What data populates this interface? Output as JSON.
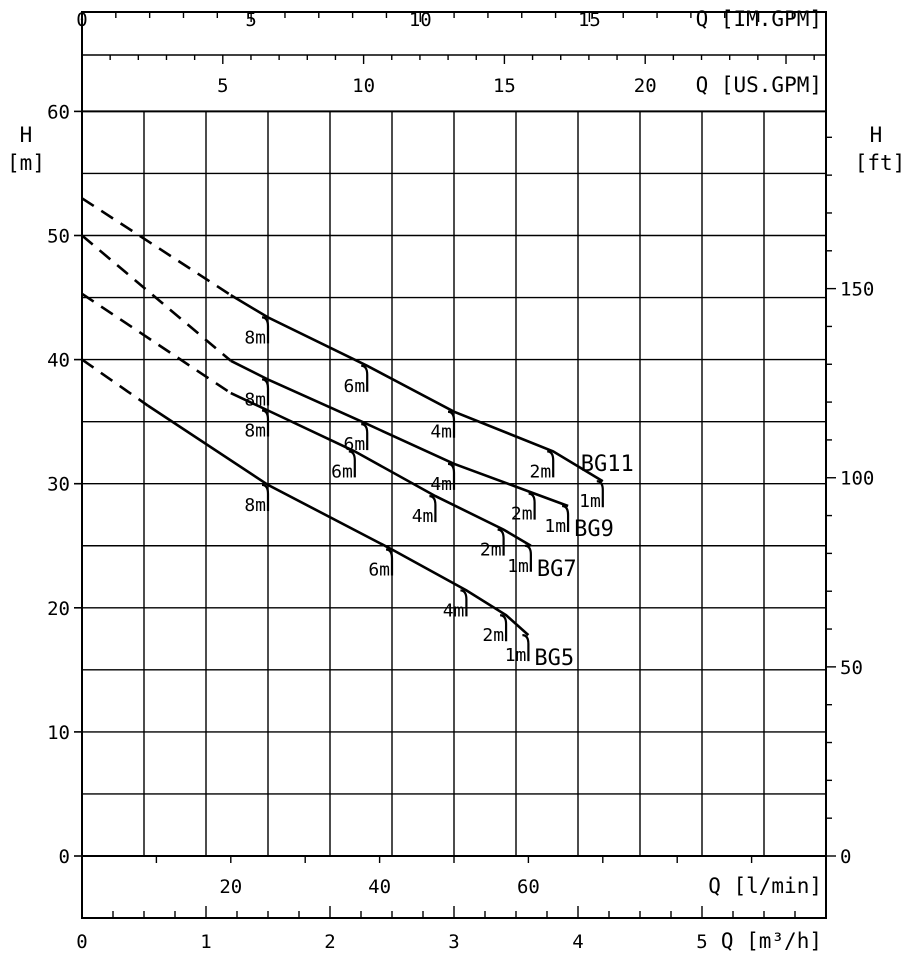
{
  "chart_data": {
    "type": "line",
    "title": "",
    "x_units": "m³/h",
    "y_units": "m",
    "xlim": [
      0,
      6
    ],
    "ylim": [
      -5,
      60
    ],
    "grid": true,
    "axes": {
      "bottom": {
        "title": "Q [m³/h]",
        "ticks": [
          "0",
          "1",
          "2",
          "3",
          "4",
          "5"
        ]
      },
      "bottom_inner": {
        "title": "Q [l/min]",
        "ticks": [
          "20",
          "40",
          "60"
        ]
      },
      "top": {
        "title": "Q [IM.GPM]",
        "ticks": [
          "0",
          "5",
          "10",
          "15"
        ]
      },
      "top_inner": {
        "title": "Q [US.GPM]",
        "ticks": [
          "5",
          "10",
          "15",
          "20"
        ]
      },
      "left": {
        "title_line1": "H",
        "title_line2": "[m]",
        "ticks": [
          "0",
          "10",
          "20",
          "30",
          "40",
          "50",
          "60"
        ]
      },
      "right": {
        "title_line1": "H",
        "title_line2": "[ft]",
        "ticks": [
          "0",
          "50",
          "100",
          "150"
        ]
      }
    },
    "series": [
      {
        "name": "BG11",
        "dashed": [
          [
            0,
            53
          ],
          [
            1.2,
            45.2
          ]
        ],
        "solid": [
          [
            1.2,
            45.2
          ],
          [
            1.5,
            43.4
          ],
          [
            2.3,
            39.5
          ],
          [
            3.0,
            35.8
          ],
          [
            3.8,
            32.6
          ],
          [
            4.2,
            30.2
          ]
        ],
        "markers": [
          {
            "label": "8m",
            "x": 1.5,
            "y": 43.4
          },
          {
            "label": "6m",
            "x": 2.3,
            "y": 39.5
          },
          {
            "label": "4m",
            "x": 3.0,
            "y": 35.8
          },
          {
            "label": "2m",
            "x": 3.8,
            "y": 32.6
          },
          {
            "label": "1m",
            "x": 4.2,
            "y": 30.2
          }
        ]
      },
      {
        "name": "BG9",
        "dashed": [
          [
            0,
            50
          ],
          [
            1.2,
            39.9
          ]
        ],
        "solid": [
          [
            1.2,
            39.9
          ],
          [
            1.5,
            38.4
          ],
          [
            2.3,
            34.8
          ],
          [
            3.0,
            31.6
          ],
          [
            3.65,
            29.2
          ],
          [
            3.92,
            28.2
          ]
        ],
        "markers": [
          {
            "label": "8m",
            "x": 1.5,
            "y": 38.4
          },
          {
            "label": "6m",
            "x": 2.3,
            "y": 34.8
          },
          {
            "label": "4m",
            "x": 3.0,
            "y": 31.6
          },
          {
            "label": "2m",
            "x": 3.65,
            "y": 29.2
          },
          {
            "label": "1m",
            "x": 3.92,
            "y": 28.2
          }
        ]
      },
      {
        "name": "BG7",
        "dashed": [
          [
            0,
            45.3
          ],
          [
            1.2,
            37.3
          ]
        ],
        "solid": [
          [
            1.2,
            37.3
          ],
          [
            1.5,
            35.9
          ],
          [
            2.2,
            32.6
          ],
          [
            2.85,
            29.0
          ],
          [
            3.4,
            26.3
          ],
          [
            3.62,
            25.0
          ]
        ],
        "markers": [
          {
            "label": "8m",
            "x": 1.5,
            "y": 35.9
          },
          {
            "label": "6m",
            "x": 2.2,
            "y": 32.6
          },
          {
            "label": "4m",
            "x": 2.85,
            "y": 29.0
          },
          {
            "label": "2m",
            "x": 3.4,
            "y": 26.3
          },
          {
            "label": "1m",
            "x": 3.62,
            "y": 25.0
          }
        ]
      },
      {
        "name": "BG5",
        "dashed": [
          [
            0,
            40
          ],
          [
            0.53,
            36.3
          ]
        ],
        "solid": [
          [
            0.53,
            36.3
          ],
          [
            1.5,
            29.9
          ],
          [
            2.5,
            24.7
          ],
          [
            3.1,
            21.4
          ],
          [
            3.42,
            19.4
          ],
          [
            3.6,
            17.8
          ]
        ],
        "markers": [
          {
            "label": "8m",
            "x": 1.5,
            "y": 29.9
          },
          {
            "label": "6m",
            "x": 2.5,
            "y": 24.7
          },
          {
            "label": "4m",
            "x": 3.1,
            "y": 21.4
          },
          {
            "label": "2m",
            "x": 3.42,
            "y": 19.4
          },
          {
            "label": "1m",
            "x": 3.6,
            "y": 17.8
          }
        ]
      }
    ]
  }
}
